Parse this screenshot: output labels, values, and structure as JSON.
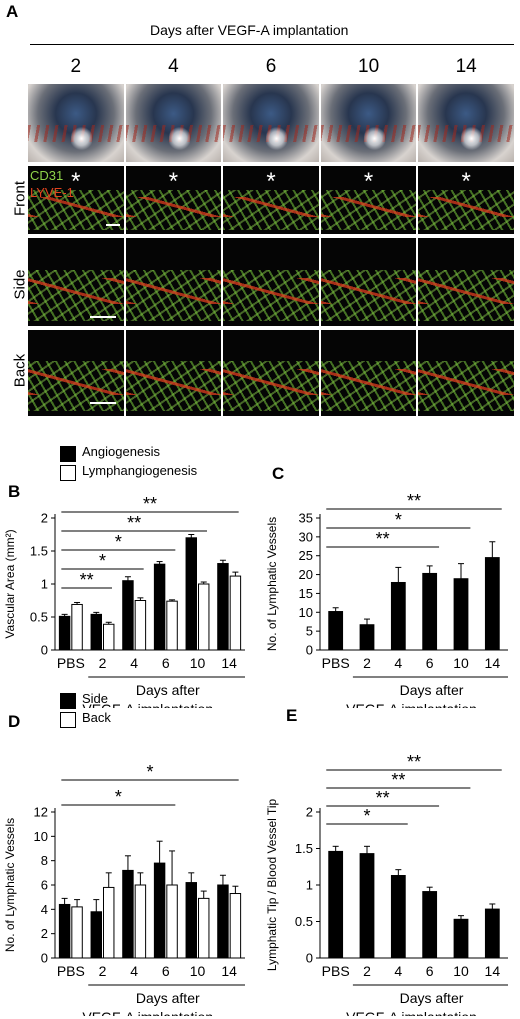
{
  "panel_a": {
    "letter": "A",
    "header": "Days after VEGF-A implantation",
    "days": [
      "2",
      "4",
      "6",
      "10",
      "14"
    ],
    "rows": [
      "Front",
      "Side",
      "Back"
    ],
    "stain_green": "CD31",
    "stain_red": "LYVE-1",
    "asterisk": "*",
    "colors": {
      "green": "#8ed34a",
      "red": "#e0431f"
    }
  },
  "chart_data": [
    {
      "panel": "B",
      "type": "bar",
      "ylabel": "Vascular Area (mm²)",
      "categories": [
        "PBS",
        "2",
        "4",
        "6",
        "10",
        "14"
      ],
      "ylim": [
        0,
        2
      ],
      "yticks": [
        "0",
        "0.5",
        "1",
        "1.5",
        "2"
      ],
      "series": [
        {
          "name": "Angiogenesis",
          "fill": "#000000",
          "values": [
            0.51,
            0.54,
            1.05,
            1.3,
            1.7,
            1.31
          ],
          "errors": [
            0.03,
            0.03,
            0.06,
            0.04,
            0.05,
            0.05
          ]
        },
        {
          "name": "Lymphangiogenesis",
          "fill": "#ffffff",
          "values": [
            0.69,
            0.39,
            0.75,
            0.74,
            1.0,
            1.12
          ],
          "errors": [
            0.03,
            0.03,
            0.04,
            0.02,
            0.03,
            0.06
          ]
        }
      ],
      "xlabel_line1": "Days after",
      "xlabel_line2": "VEGF-A implantation",
      "significance": [
        {
          "label": "**",
          "from": "PBS",
          "to": "2"
        },
        {
          "label": "*",
          "from": "PBS",
          "to": "4"
        },
        {
          "label": "*",
          "from": "PBS",
          "to": "6"
        },
        {
          "label": "**",
          "from": "PBS",
          "to": "10"
        },
        {
          "label": "**",
          "from": "PBS",
          "to": "14"
        }
      ]
    },
    {
      "panel": "C",
      "type": "bar",
      "ylabel": "No. of Lymphatic Vessels",
      "categories": [
        "PBS",
        "2",
        "4",
        "6",
        "10",
        "14"
      ],
      "ylim": [
        0,
        35
      ],
      "yticks": [
        "0",
        "5",
        "10",
        "15",
        "20",
        "25",
        "30",
        "35"
      ],
      "series": [
        {
          "fill": "#000000",
          "values": [
            10.2,
            6.7,
            17.9,
            20.3,
            18.9,
            24.5
          ],
          "errors": [
            1.0,
            1.5,
            4.0,
            2.0,
            4.0,
            4.2
          ]
        }
      ],
      "xlabel_line1": "Days after",
      "xlabel_line2": "VEGF-A implantation",
      "significance": [
        {
          "label": "**",
          "from": "PBS",
          "to": "6"
        },
        {
          "label": "*",
          "from": "PBS",
          "to": "10"
        },
        {
          "label": "**",
          "from": "PBS",
          "to": "14"
        }
      ]
    },
    {
      "panel": "D",
      "type": "bar",
      "ylabel": "No. of Lymphatic Vessels",
      "categories": [
        "PBS",
        "2",
        "4",
        "6",
        "10",
        "14"
      ],
      "ylim": [
        0,
        12
      ],
      "yticks": [
        "0",
        "2",
        "4",
        "6",
        "8",
        "10",
        "12"
      ],
      "series": [
        {
          "name": "Side",
          "fill": "#000000",
          "values": [
            4.4,
            3.8,
            7.2,
            7.8,
            6.2,
            6.0
          ],
          "errors": [
            0.5,
            1.0,
            1.2,
            1.8,
            0.8,
            0.8
          ]
        },
        {
          "name": "Back",
          "fill": "#ffffff",
          "values": [
            4.2,
            5.8,
            6.0,
            6.0,
            4.9,
            5.3
          ],
          "errors": [
            0.6,
            1.2,
            1.0,
            2.8,
            0.6,
            0.6
          ]
        }
      ],
      "xlabel_line1": "Days after",
      "xlabel_line2": "VEGF-A implantation",
      "significance": [
        {
          "label": "*",
          "from": "PBS",
          "to": "6"
        },
        {
          "label": "*",
          "from": "PBS",
          "to": "14"
        }
      ]
    },
    {
      "panel": "E",
      "type": "bar",
      "ylabel": "Lymphatic Tip / Blood Vessel Tip",
      "categories": [
        "PBS",
        "2",
        "4",
        "6",
        "10",
        "14"
      ],
      "ylim": [
        0,
        2
      ],
      "yticks": [
        "0",
        "0.5",
        "1",
        "1.5",
        "2"
      ],
      "series": [
        {
          "fill": "#000000",
          "values": [
            1.46,
            1.43,
            1.13,
            0.91,
            0.53,
            0.67
          ],
          "errors": [
            0.07,
            0.1,
            0.08,
            0.06,
            0.05,
            0.07
          ]
        }
      ],
      "xlabel_line1": "Days after",
      "xlabel_line2": "VEGF-A implantation",
      "significance": [
        {
          "label": "*",
          "from": "PBS",
          "to": "4"
        },
        {
          "label": "**",
          "from": "PBS",
          "to": "6"
        },
        {
          "label": "**",
          "from": "PBS",
          "to": "10"
        },
        {
          "label": "**",
          "from": "PBS",
          "to": "14"
        }
      ]
    }
  ]
}
